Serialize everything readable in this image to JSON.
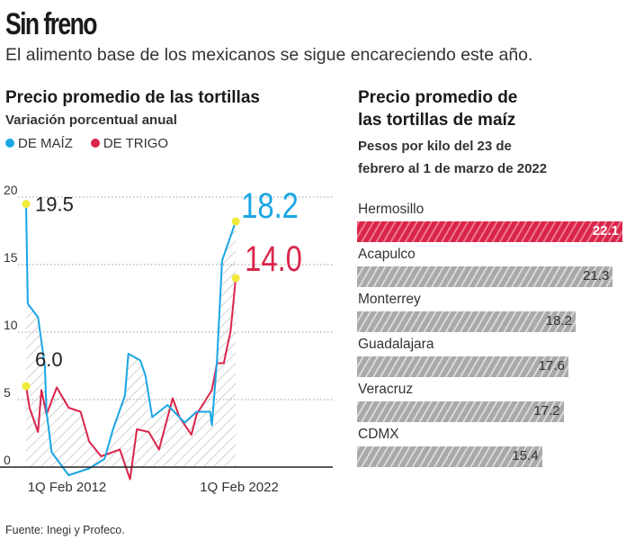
{
  "header": {
    "title": "Sin freno",
    "subtitle": "El alimento base de los mexicanos se sigue encareciendo este año."
  },
  "source": "Fuente: Inegi y Profeco.",
  "colors": {
    "maiz": "#1aa6e4",
    "trigo": "#d9254a",
    "bar": "#a9a9a9",
    "highlight": "#d9254a"
  },
  "chart_data": [
    {
      "type": "line",
      "title": "Precio promedio de las tortillas",
      "subtitle": "Variación porcentual anual",
      "x_tick_labels": [
        "1Q Feb 2012",
        "1Q Feb 2022"
      ],
      "x_ticks": [
        2012,
        2022
      ],
      "xlim": [
        2009.6,
        2022.0
      ],
      "ylim": [
        -1,
        20
      ],
      "y_ticks": [
        0,
        5,
        10,
        15,
        20
      ],
      "grid": "dotted horizontal",
      "legend_placement": "top-left",
      "series": [
        {
          "name": "DE MAÍZ",
          "color": "#1aa6e4",
          "points": [
            [
              2009.6,
              19.5
            ],
            [
              2009.7,
              12.1
            ],
            [
              2010.3,
              11.1
            ],
            [
              2010.7,
              7.5
            ],
            [
              2010.8,
              4.1
            ],
            [
              2011.1,
              1.1
            ],
            [
              2012.1,
              -0.6
            ],
            [
              2013.3,
              -0.1
            ],
            [
              2014.2,
              0.6
            ],
            [
              2014.7,
              2.8
            ],
            [
              2015.4,
              5.3
            ],
            [
              2015.6,
              8.4
            ],
            [
              2016.3,
              7.9
            ],
            [
              2016.6,
              6.8
            ],
            [
              2017.0,
              3.7
            ],
            [
              2017.9,
              4.6
            ],
            [
              2018.9,
              3.3
            ],
            [
              2019.6,
              4.1
            ],
            [
              2020.4,
              4.1
            ],
            [
              2020.5,
              3.1
            ],
            [
              2020.8,
              7.9
            ],
            [
              2021.1,
              15.3
            ],
            [
              2021.9,
              18.2
            ]
          ]
        },
        {
          "name": "DE TRIGO",
          "color": "#d9254a",
          "points": [
            [
              2009.6,
              6.0
            ],
            [
              2009.8,
              4.4
            ],
            [
              2010.3,
              2.6
            ],
            [
              2010.5,
              5.7
            ],
            [
              2010.8,
              3.9
            ],
            [
              2011.4,
              5.9
            ],
            [
              2012.1,
              4.4
            ],
            [
              2012.8,
              4.1
            ],
            [
              2013.3,
              1.9
            ],
            [
              2014.0,
              0.8
            ],
            [
              2015.1,
              1.3
            ],
            [
              2015.7,
              -0.9
            ],
            [
              2016.1,
              2.8
            ],
            [
              2016.8,
              2.6
            ],
            [
              2017.4,
              1.3
            ],
            [
              2018.2,
              5.1
            ],
            [
              2018.6,
              3.7
            ],
            [
              2019.3,
              2.4
            ],
            [
              2019.6,
              3.9
            ],
            [
              2020.5,
              5.7
            ],
            [
              2020.8,
              7.7
            ],
            [
              2021.2,
              7.7
            ],
            [
              2021.6,
              10.1
            ],
            [
              2021.9,
              14.0
            ]
          ]
        }
      ],
      "annotations": [
        {
          "text": "19.5",
          "series": "DE MAÍZ",
          "at": "start"
        },
        {
          "text": "6.0",
          "series": "DE TRIGO",
          "at": "start"
        },
        {
          "text": "18.2",
          "series": "DE MAÍZ",
          "at": "end"
        },
        {
          "text": "14.0",
          "series": "DE TRIGO",
          "at": "end"
        }
      ]
    },
    {
      "type": "bar",
      "orientation": "horizontal",
      "title": "Precio promedio de las tortillas de maíz",
      "subtitle_lines": [
        "Pesos por kilo del 23 de",
        "febrero al 1 de marzo de 2022"
      ],
      "categories": [
        "Hermosillo",
        "Acapulco",
        "Monterrey",
        "Guadalajara",
        "Veracruz",
        "CDMX"
      ],
      "values": [
        22.1,
        21.3,
        18.2,
        17.6,
        17.2,
        15.4
      ],
      "value_labels": [
        "22.1",
        "21.3",
        "18.2",
        "17.6",
        "17.2",
        "15.4"
      ],
      "highlight": "Hermosillo"
    }
  ]
}
